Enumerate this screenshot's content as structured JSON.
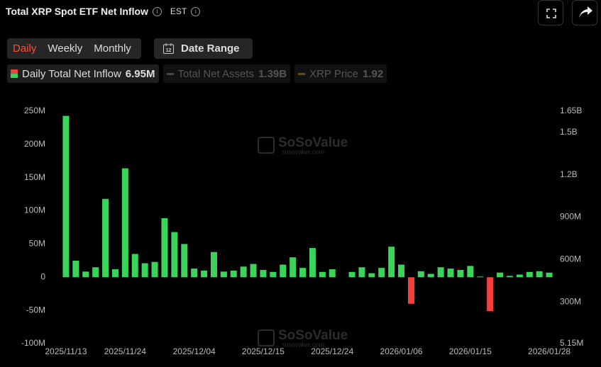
{
  "header": {
    "title": "Total XRP Spot ETF Net Inflow",
    "timezone": "EST"
  },
  "controls": {
    "periods": [
      "Daily",
      "Weekly",
      "Monthly"
    ],
    "active_period_index": 0,
    "date_range": "Date Range"
  },
  "legend": {
    "active_value": "6.95M",
    "inactive": [
      {
        "name": "Total Net Assets",
        "value": "1.39B",
        "color": "#4a4a4a"
      },
      {
        "name": "XRP Price",
        "value": "1.92",
        "color": "#6b4a10"
      }
    ]
  },
  "watermark": {
    "brand": "SoSoValue",
    "url": "sosovalue.com"
  },
  "chart_data": {
    "type": "bar",
    "categories": [
      "2025/11/13",
      null,
      null,
      null,
      null,
      null,
      "2025/11/24",
      null,
      null,
      null,
      null,
      null,
      null,
      "2025/12/04",
      null,
      null,
      null,
      null,
      null,
      null,
      "2025/12/15",
      null,
      null,
      null,
      null,
      null,
      null,
      "2025/12/24",
      null,
      null,
      null,
      null,
      null,
      null,
      "2026/01/06",
      null,
      null,
      null,
      null,
      null,
      null,
      "2026/01/15",
      null,
      null,
      null,
      null,
      null,
      null,
      null,
      "2026/01/28"
    ],
    "series": [
      {
        "name": "Daily Total Net Inflow",
        "color": "#3bd35a",
        "negative_color": "#f2413d",
        "values": [
          243,
          25,
          8.5,
          15,
          118,
          12,
          164,
          35,
          21,
          23,
          89,
          68,
          50,
          13,
          10,
          38,
          8.5,
          10,
          16,
          20,
          11,
          8,
          19,
          30,
          14,
          44,
          8,
          12,
          null,
          8,
          15,
          6,
          14,
          46,
          19,
          -40,
          9,
          5,
          15,
          13,
          11,
          17,
          1,
          -51,
          7,
          2,
          4,
          8,
          9,
          6.95
        ]
      }
    ],
    "ylim": [
      -100,
      250
    ],
    "yticks": [
      {
        "value": -100,
        "label": "-100M"
      },
      {
        "value": -50,
        "label": "-50M"
      },
      0,
      {
        "value": 50,
        "label": "50M"
      },
      {
        "value": 100,
        "label": "100M"
      },
      {
        "value": 150,
        "label": "150M"
      },
      {
        "value": 200,
        "label": "200M"
      },
      {
        "value": 250,
        "label": "250M"
      }
    ],
    "y2lim": [
      5.15,
      1650
    ],
    "y2ticks": [
      {
        "value": 5.15,
        "label": "5.15M"
      },
      {
        "value": 300,
        "label": "300M"
      },
      {
        "value": 600,
        "label": "600M"
      },
      {
        "value": 900,
        "label": "900M"
      },
      {
        "value": 1200,
        "label": "1.2B"
      },
      {
        "value": 1500,
        "label": "1.5B"
      },
      {
        "value": 1650,
        "label": "1.65B"
      }
    ]
  }
}
